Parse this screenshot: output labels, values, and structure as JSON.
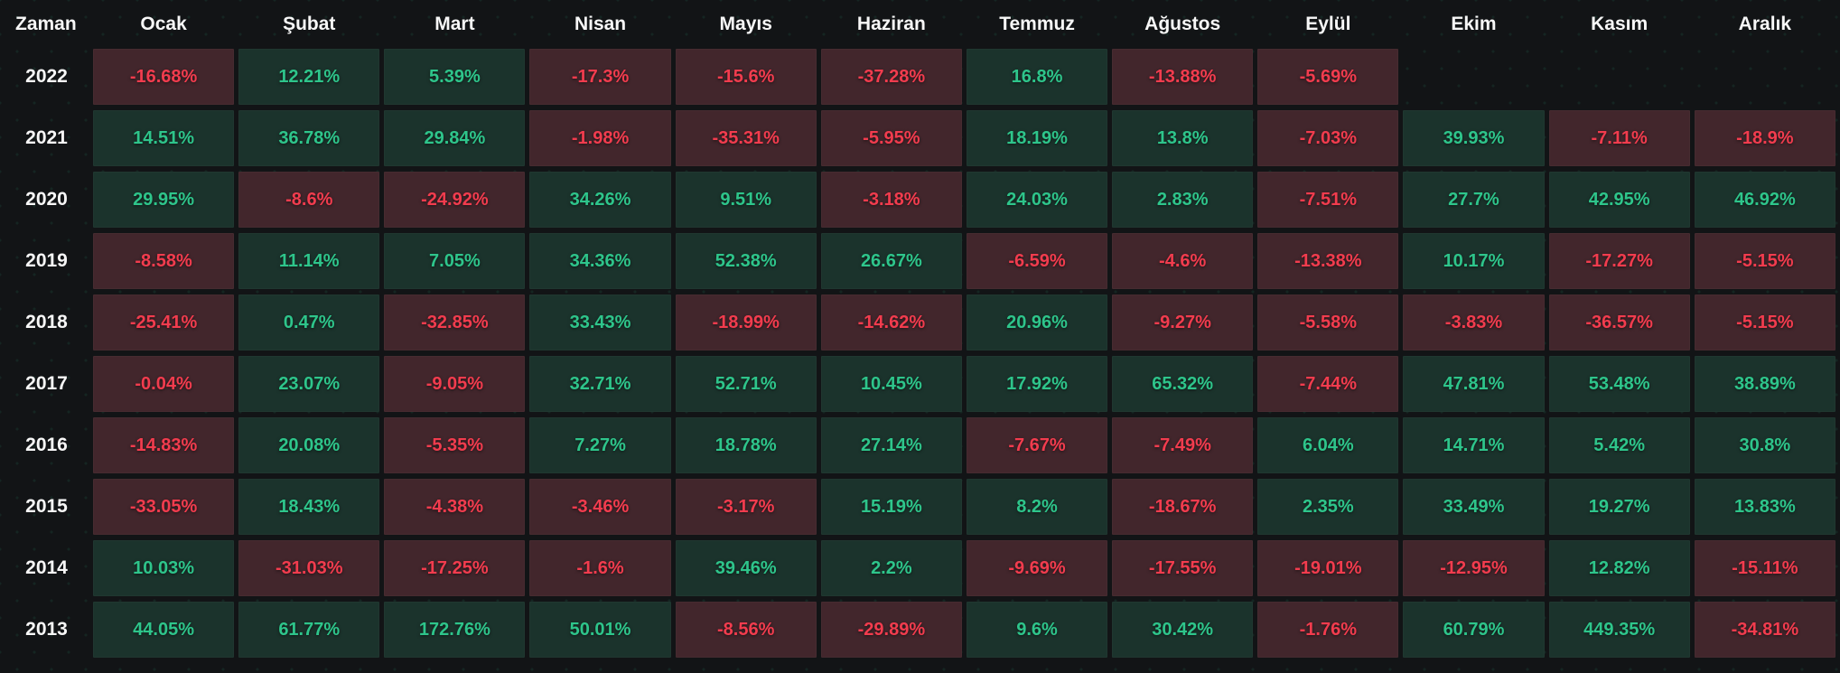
{
  "table": {
    "time_column_label": "Zaman",
    "months": [
      "Ocak",
      "Şubat",
      "Mart",
      "Nisan",
      "Mayıs",
      "Haziran",
      "Temmuz",
      "Ağustos",
      "Eylül",
      "Ekim",
      "Kasım",
      "Aralık"
    ],
    "rows": [
      {
        "year": "2022",
        "values": [
          "-16.68%",
          "12.21%",
          "5.39%",
          "-17.3%",
          "-15.6%",
          "-37.28%",
          "16.8%",
          "-13.88%",
          "-5.69%",
          null,
          null,
          null
        ]
      },
      {
        "year": "2021",
        "values": [
          "14.51%",
          "36.78%",
          "29.84%",
          "-1.98%",
          "-35.31%",
          "-5.95%",
          "18.19%",
          "13.8%",
          "-7.03%",
          "39.93%",
          "-7.11%",
          "-18.9%"
        ]
      },
      {
        "year": "2020",
        "values": [
          "29.95%",
          "-8.6%",
          "-24.92%",
          "34.26%",
          "9.51%",
          "-3.18%",
          "24.03%",
          "2.83%",
          "-7.51%",
          "27.7%",
          "42.95%",
          "46.92%"
        ]
      },
      {
        "year": "2019",
        "values": [
          "-8.58%",
          "11.14%",
          "7.05%",
          "34.36%",
          "52.38%",
          "26.67%",
          "-6.59%",
          "-4.6%",
          "-13.38%",
          "10.17%",
          "-17.27%",
          "-5.15%"
        ]
      },
      {
        "year": "2018",
        "values": [
          "-25.41%",
          "0.47%",
          "-32.85%",
          "33.43%",
          "-18.99%",
          "-14.62%",
          "20.96%",
          "-9.27%",
          "-5.58%",
          "-3.83%",
          "-36.57%",
          "-5.15%"
        ]
      },
      {
        "year": "2017",
        "values": [
          "-0.04%",
          "23.07%",
          "-9.05%",
          "32.71%",
          "52.71%",
          "10.45%",
          "17.92%",
          "65.32%",
          "-7.44%",
          "47.81%",
          "53.48%",
          "38.89%"
        ]
      },
      {
        "year": "2016",
        "values": [
          "-14.83%",
          "20.08%",
          "-5.35%",
          "7.27%",
          "18.78%",
          "27.14%",
          "-7.67%",
          "-7.49%",
          "6.04%",
          "14.71%",
          "5.42%",
          "30.8%"
        ]
      },
      {
        "year": "2015",
        "values": [
          "-33.05%",
          "18.43%",
          "-4.38%",
          "-3.46%",
          "-3.17%",
          "15.19%",
          "8.2%",
          "-18.67%",
          "2.35%",
          "33.49%",
          "19.27%",
          "13.83%"
        ]
      },
      {
        "year": "2014",
        "values": [
          "10.03%",
          "-31.03%",
          "-17.25%",
          "-1.6%",
          "39.46%",
          "2.2%",
          "-9.69%",
          "-17.55%",
          "-19.01%",
          "-12.95%",
          "12.82%",
          "-15.11%"
        ]
      },
      {
        "year": "2013",
        "values": [
          "44.05%",
          "61.77%",
          "172.76%",
          "50.01%",
          "-8.56%",
          "-29.89%",
          "9.6%",
          "30.42%",
          "-1.76%",
          "60.79%",
          "449.35%",
          "-34.81%"
        ]
      }
    ]
  },
  "colors": {
    "page_bg": "#121416",
    "dot_pattern": "rgba(46,189,133,0.10)",
    "header_text": "#f7f7f7",
    "positive_text": "#2ec58b",
    "negative_text": "#f23c4e",
    "positive_bg": "#1b332c",
    "negative_bg": "#42262c"
  },
  "chart_data": {
    "type": "heatmap",
    "title": "",
    "xlabel": "",
    "ylabel": "Zaman",
    "unit": "%",
    "legend": "off",
    "x_categories": [
      "Ocak",
      "Şubat",
      "Mart",
      "Nisan",
      "Mayıs",
      "Haziran",
      "Temmuz",
      "Ağustos",
      "Eylül",
      "Ekim",
      "Kasım",
      "Aralık"
    ],
    "y_categories": [
      "2022",
      "2021",
      "2020",
      "2019",
      "2018",
      "2017",
      "2016",
      "2015",
      "2014",
      "2013"
    ],
    "values": [
      [
        -16.68,
        12.21,
        5.39,
        -17.3,
        -15.6,
        -37.28,
        16.8,
        -13.88,
        -5.69,
        null,
        null,
        null
      ],
      [
        14.51,
        36.78,
        29.84,
        -1.98,
        -35.31,
        -5.95,
        18.19,
        13.8,
        -7.03,
        39.93,
        -7.11,
        -18.9
      ],
      [
        29.95,
        -8.6,
        -24.92,
        34.26,
        9.51,
        -3.18,
        24.03,
        2.83,
        -7.51,
        27.7,
        42.95,
        46.92
      ],
      [
        -8.58,
        11.14,
        7.05,
        34.36,
        52.38,
        26.67,
        -6.59,
        -4.6,
        -13.38,
        10.17,
        -17.27,
        -5.15
      ],
      [
        -25.41,
        0.47,
        -32.85,
        33.43,
        -18.99,
        -14.62,
        20.96,
        -9.27,
        -5.58,
        -3.83,
        -36.57,
        -5.15
      ],
      [
        -0.04,
        23.07,
        -9.05,
        32.71,
        52.71,
        10.45,
        17.92,
        65.32,
        -7.44,
        47.81,
        53.48,
        38.89
      ],
      [
        -14.83,
        20.08,
        -5.35,
        7.27,
        18.78,
        27.14,
        -7.67,
        -7.49,
        6.04,
        14.71,
        5.42,
        30.8
      ],
      [
        -33.05,
        18.43,
        -4.38,
        -3.46,
        -3.17,
        15.19,
        8.2,
        -18.67,
        2.35,
        33.49,
        19.27,
        13.83
      ],
      [
        10.03,
        -31.03,
        -17.25,
        -1.6,
        39.46,
        2.2,
        -9.69,
        -17.55,
        -19.01,
        -12.95,
        12.82,
        -15.11
      ],
      [
        44.05,
        61.77,
        172.76,
        50.01,
        -8.56,
        -29.89,
        9.6,
        30.42,
        -1.76,
        60.79,
        449.35,
        -34.81
      ]
    ],
    "cell_color_rule": "value >= 0 -> green (#1b332c bg / #2ec58b text), value < 0 -> red (#42262c bg / #f23c4e text)"
  }
}
